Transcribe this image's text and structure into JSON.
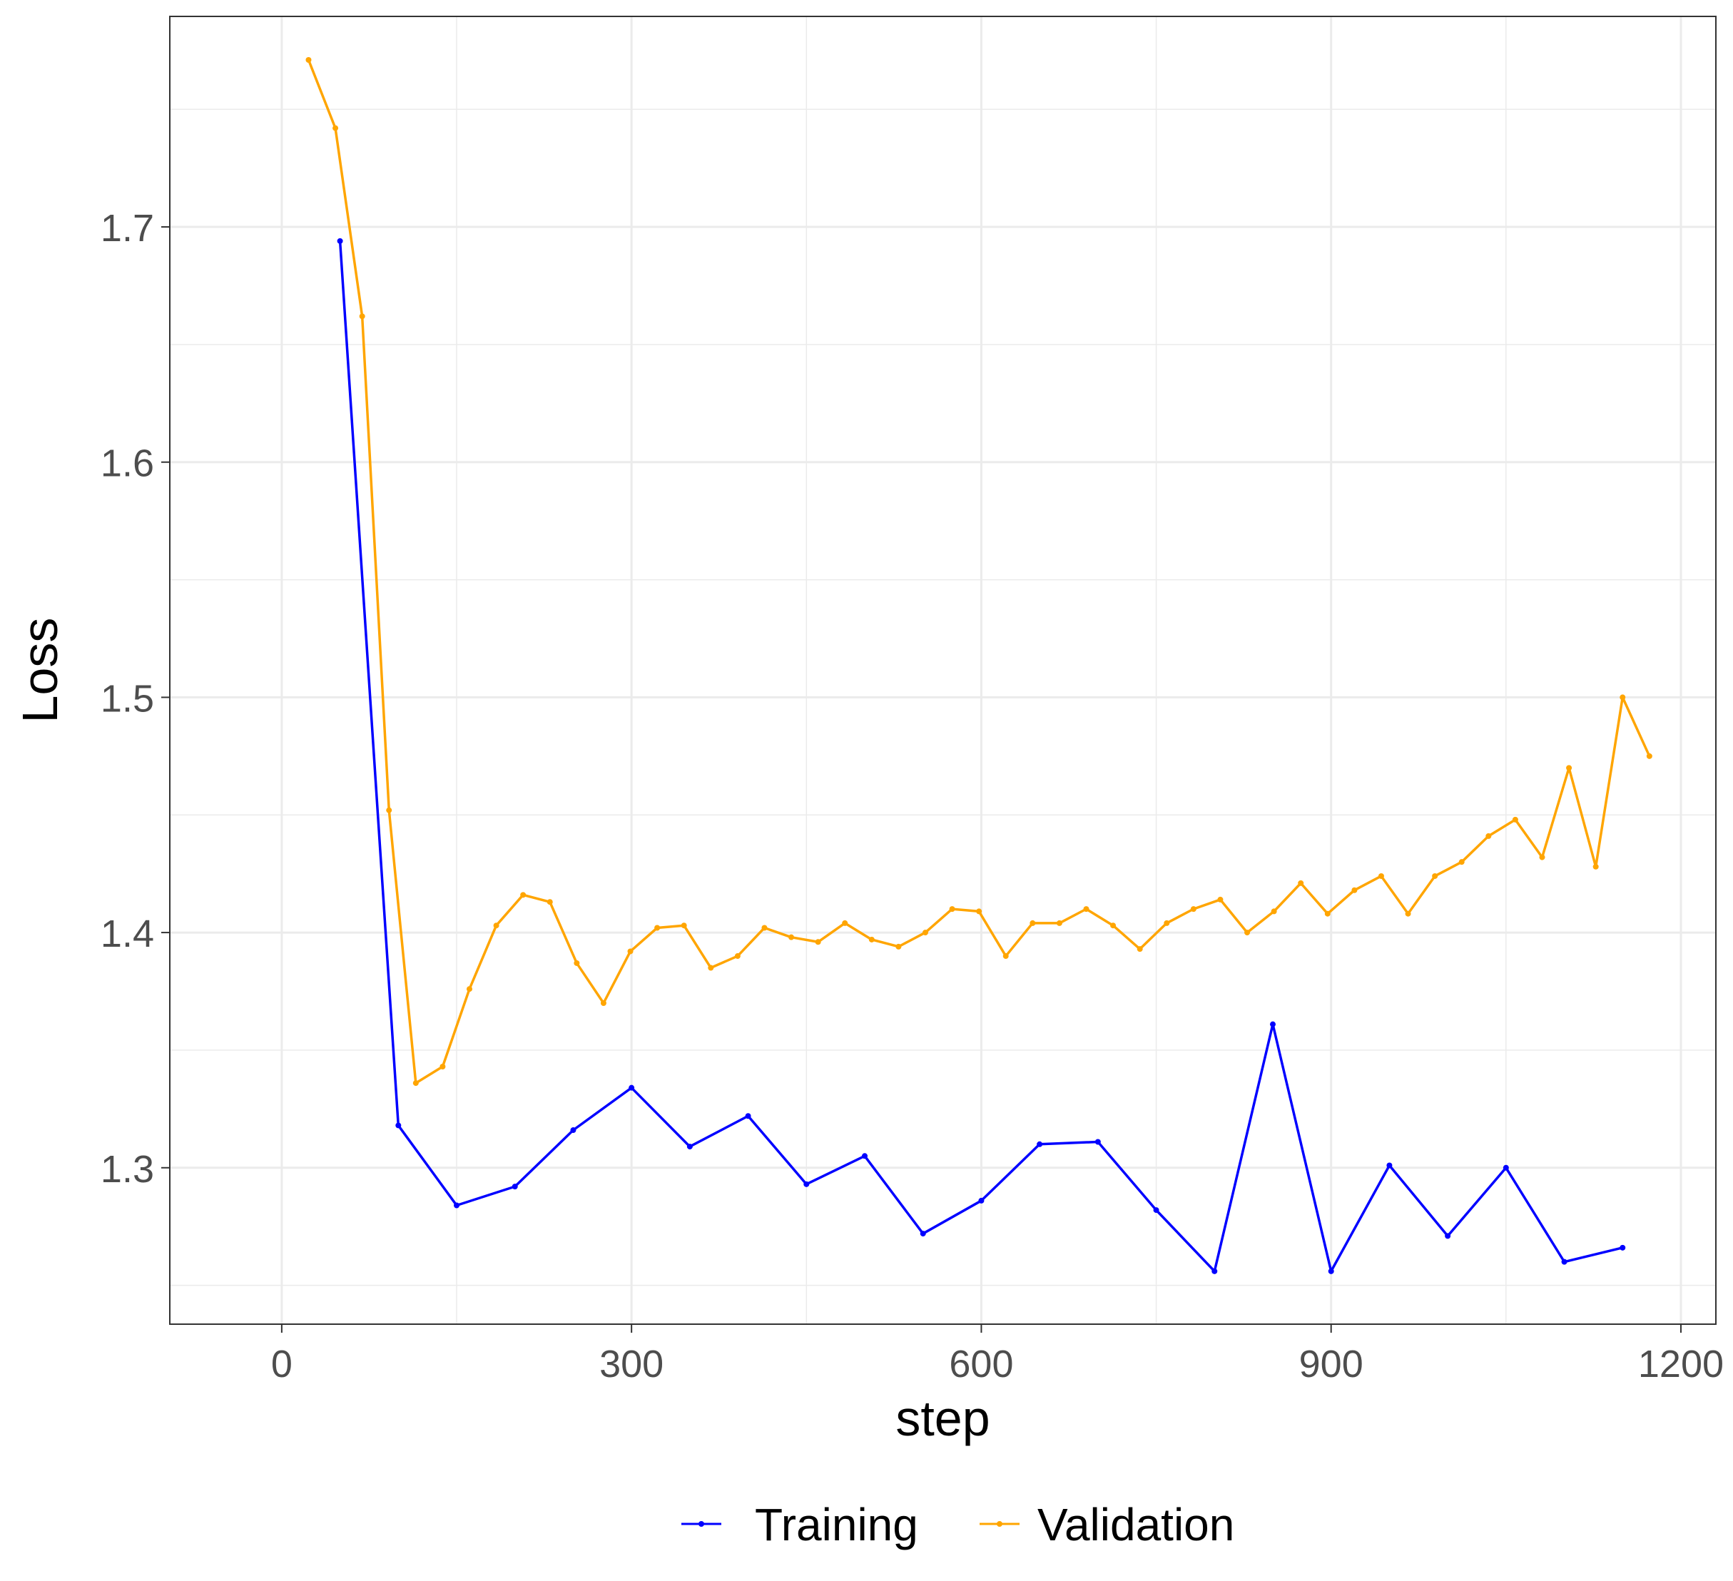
{
  "chart_data": {
    "type": "line",
    "xlabel": "step",
    "ylabel": "Loss",
    "xlim": [
      -96,
      1230
    ],
    "ylim": [
      1.2335,
      1.7895
    ],
    "x_ticks": [
      0,
      300,
      600,
      900,
      1200
    ],
    "x_tick_labels": [
      "0",
      "300",
      "600",
      "900",
      "1200"
    ],
    "y_ticks": [
      1.3,
      1.4,
      1.5,
      1.6,
      1.7
    ],
    "y_tick_labels": [
      "1.3",
      "1.4",
      "1.5",
      "1.6",
      "1.7"
    ],
    "grid": true,
    "legend_position": "bottom",
    "series": [
      {
        "name": "Training",
        "color": "#0000ff",
        "x": [
          50,
          100,
          150,
          200,
          250,
          300,
          350,
          400,
          450,
          500,
          550,
          600,
          650,
          700,
          750,
          800,
          850,
          900,
          950,
          1000,
          1050,
          1100,
          1150
        ],
        "y": [
          1.694,
          1.318,
          1.284,
          1.292,
          1.316,
          1.334,
          1.309,
          1.322,
          1.293,
          1.305,
          1.272,
          1.286,
          1.31,
          1.311,
          1.282,
          1.256,
          1.361,
          1.256,
          1.301,
          1.271,
          1.3,
          1.26,
          1.266
        ]
      },
      {
        "name": "Validation",
        "color": "#ffa500",
        "x": [
          23,
          46,
          69,
          92,
          115,
          138,
          161,
          184,
          207,
          230,
          253,
          276,
          299,
          322,
          345,
          368,
          391,
          414,
          437,
          460,
          483,
          506,
          529,
          552,
          575,
          598,
          621,
          644,
          667,
          690,
          713,
          736,
          759,
          782,
          805,
          828,
          851,
          874,
          897,
          920,
          943,
          966,
          989,
          1012,
          1035,
          1058,
          1081,
          1104,
          1127,
          1150,
          1173
        ],
        "y": [
          1.771,
          1.742,
          1.662,
          1.452,
          1.336,
          1.343,
          1.376,
          1.403,
          1.416,
          1.413,
          1.387,
          1.37,
          1.392,
          1.402,
          1.403,
          1.385,
          1.39,
          1.402,
          1.398,
          1.396,
          1.404,
          1.397,
          1.394,
          1.4,
          1.41,
          1.409,
          1.39,
          1.404,
          1.404,
          1.41,
          1.403,
          1.393,
          1.404,
          1.41,
          1.414,
          1.4,
          1.409,
          1.421,
          1.408,
          1.418,
          1.424,
          1.408,
          1.424,
          1.43,
          1.441,
          1.448,
          1.432,
          1.47,
          1.428,
          1.5,
          1.475
        ]
      }
    ]
  }
}
